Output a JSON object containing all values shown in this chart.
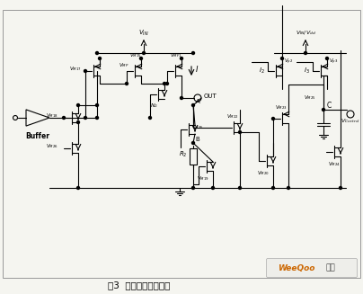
{
  "title": "图3  浪涌电流控制电路",
  "watermark_text": "WeeQoo",
  "watermark_cn": "维库",
  "bg_color": "#f5f5f0",
  "line_color": "#000000",
  "fig_width": 4.04,
  "fig_height": 3.27,
  "dpi": 100
}
